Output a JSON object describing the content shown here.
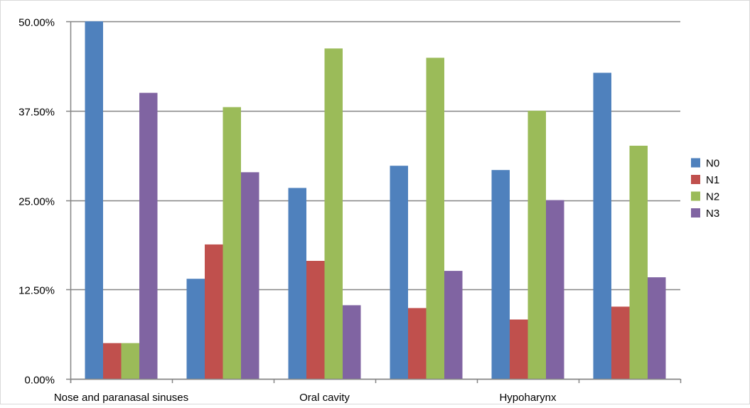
{
  "chart_data": {
    "type": "bar",
    "title": "",
    "xlabel": "",
    "ylabel": "",
    "ylim": [
      0,
      50
    ],
    "yticks": [
      "0.00%",
      "12.50%",
      "25.00%",
      "37.50%",
      "50.00%"
    ],
    "categories": [
      "Nose and paranasal sinuses",
      "",
      "Oral cavity",
      "",
      "Hypoharynx",
      ""
    ],
    "series": [
      {
        "name": "N0",
        "color": "#4F81BD",
        "values": [
          50.0,
          14.0,
          26.7,
          29.8,
          29.2,
          42.8
        ]
      },
      {
        "name": "N1",
        "color": "#C0504D",
        "values": [
          5.0,
          18.8,
          16.5,
          9.9,
          8.3,
          10.1
        ]
      },
      {
        "name": "N2",
        "color": "#9BBB59",
        "values": [
          5.0,
          38.0,
          46.2,
          44.9,
          37.5,
          32.6
        ]
      },
      {
        "name": "N3",
        "color": "#8064A2",
        "values": [
          40.0,
          28.9,
          10.3,
          15.1,
          25.0,
          14.2
        ]
      }
    ],
    "grid": "horizontal",
    "legend": "right"
  }
}
